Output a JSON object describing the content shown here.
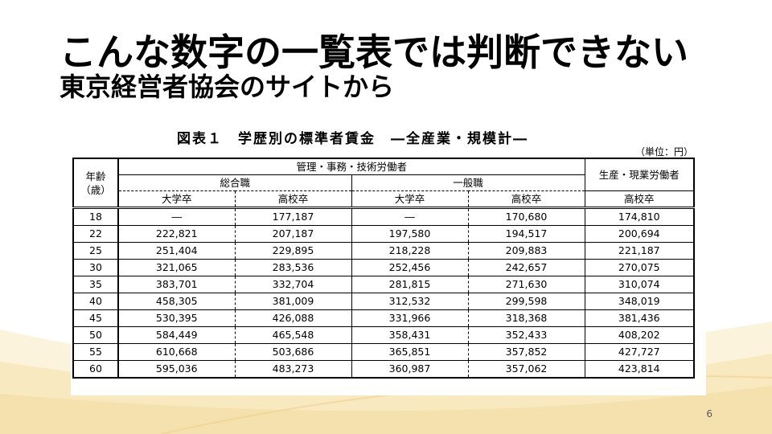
{
  "slide": {
    "title": "こんな数字の一覧表では判断できない",
    "subtitle": "東京経営者協会のサイトから",
    "page_number": "6"
  },
  "figure": {
    "title": "図表１　学歴別の標準者賃金　―全産業・規模計―",
    "unit": "（単位：円）",
    "headers": {
      "age_line1": "年齢",
      "age_line2": "（歳）",
      "group_management": "管理・事務・技術労働者",
      "group_sogo": "総合職",
      "group_ippan": "一般職",
      "group_production": "生産・現業労働者",
      "daigaku_1": "大学卒",
      "koko_1": "高校卒",
      "daigaku_2": "大学卒",
      "koko_2": "高校卒",
      "koko_3": "高校卒"
    },
    "rows": [
      [
        "18",
        "―",
        "177,187",
        "―",
        "170,680",
        "174,810"
      ],
      [
        "22",
        "222,821",
        "207,187",
        "197,580",
        "194,517",
        "200,694"
      ],
      [
        "25",
        "251,404",
        "229,895",
        "218,228",
        "209,883",
        "221,187"
      ],
      [
        "30",
        "321,065",
        "283,536",
        "252,456",
        "242,657",
        "270,075"
      ],
      [
        "35",
        "383,701",
        "332,704",
        "281,815",
        "271,630",
        "310,074"
      ],
      [
        "40",
        "458,305",
        "381,009",
        "312,532",
        "299,598",
        "348,019"
      ],
      [
        "45",
        "530,395",
        "426,088",
        "331,966",
        "318,368",
        "381,436"
      ],
      [
        "50",
        "584,449",
        "465,548",
        "358,431",
        "352,433",
        "408,202"
      ],
      [
        "55",
        "610,668",
        "503,686",
        "365,851",
        "357,852",
        "427,727"
      ],
      [
        "60",
        "595,036",
        "483,273",
        "360,987",
        "357,062",
        "423,814"
      ]
    ]
  },
  "colors": {
    "decoration_gold": "#f3dca0",
    "decoration_light": "#faf0d2",
    "page_number": "#595959"
  }
}
